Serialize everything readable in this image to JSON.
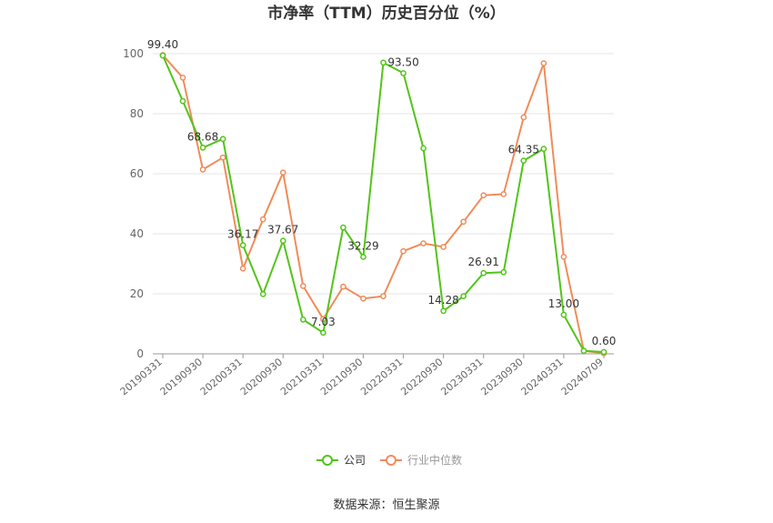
{
  "chart_data": {
    "type": "line",
    "title": "市净率（TTM）历史百分位（%）",
    "x": [
      "20190331",
      "20190630",
      "20190930",
      "20191231",
      "20200331",
      "20200630",
      "20200930",
      "20201231",
      "20210331",
      "20210630",
      "20210930",
      "20211231",
      "20220331",
      "20220630",
      "20220930",
      "20221231",
      "20230331",
      "20230630",
      "20230930",
      "20231231",
      "20240331",
      "20240630",
      "20240709"
    ],
    "x_tick_labels": [
      "20190331",
      "20190930",
      "20200331",
      "20200930",
      "20210331",
      "20210930",
      "20220331",
      "20220930",
      "20230331",
      "20230930",
      "20240331",
      "20240709"
    ],
    "ylim": [
      0,
      100
    ],
    "yticks": [
      0,
      20,
      40,
      60,
      80,
      100
    ],
    "grid": true,
    "legend_position": "bottom",
    "series": [
      {
        "name": "公司",
        "color": "#52c41a",
        "values": [
          99.4,
          84.2,
          68.68,
          71.6,
          36.17,
          19.9,
          37.67,
          11.4,
          7.03,
          42.1,
          32.29,
          97.0,
          93.5,
          68.5,
          14.28,
          19.2,
          26.91,
          27.2,
          64.35,
          68.3,
          13.0,
          1.0,
          0.6
        ]
      },
      {
        "name": "行业中位数",
        "color": "#f08c5a",
        "values": [
          99.5,
          92.0,
          61.4,
          65.4,
          28.4,
          44.8,
          60.4,
          22.6,
          11.6,
          22.4,
          18.4,
          19.2,
          34.2,
          36.8,
          35.6,
          44.0,
          52.8,
          53.2,
          78.8,
          96.8,
          32.3,
          1.0,
          0.2
        ]
      }
    ],
    "data_labels": [
      {
        "index": 0,
        "text": "99.40"
      },
      {
        "index": 2,
        "text": "68.68"
      },
      {
        "index": 4,
        "text": "36.17"
      },
      {
        "index": 6,
        "text": "37.67"
      },
      {
        "index": 8,
        "text": "7.03"
      },
      {
        "index": 10,
        "text": "32.29"
      },
      {
        "index": 12,
        "text": "93.50"
      },
      {
        "index": 14,
        "text": "14.28"
      },
      {
        "index": 16,
        "text": "26.91"
      },
      {
        "index": 18,
        "text": "64.35"
      },
      {
        "index": 20,
        "text": "13.00"
      },
      {
        "index": 22,
        "text": "0.60"
      }
    ]
  },
  "source_text": "数据来源：恒生聚源"
}
